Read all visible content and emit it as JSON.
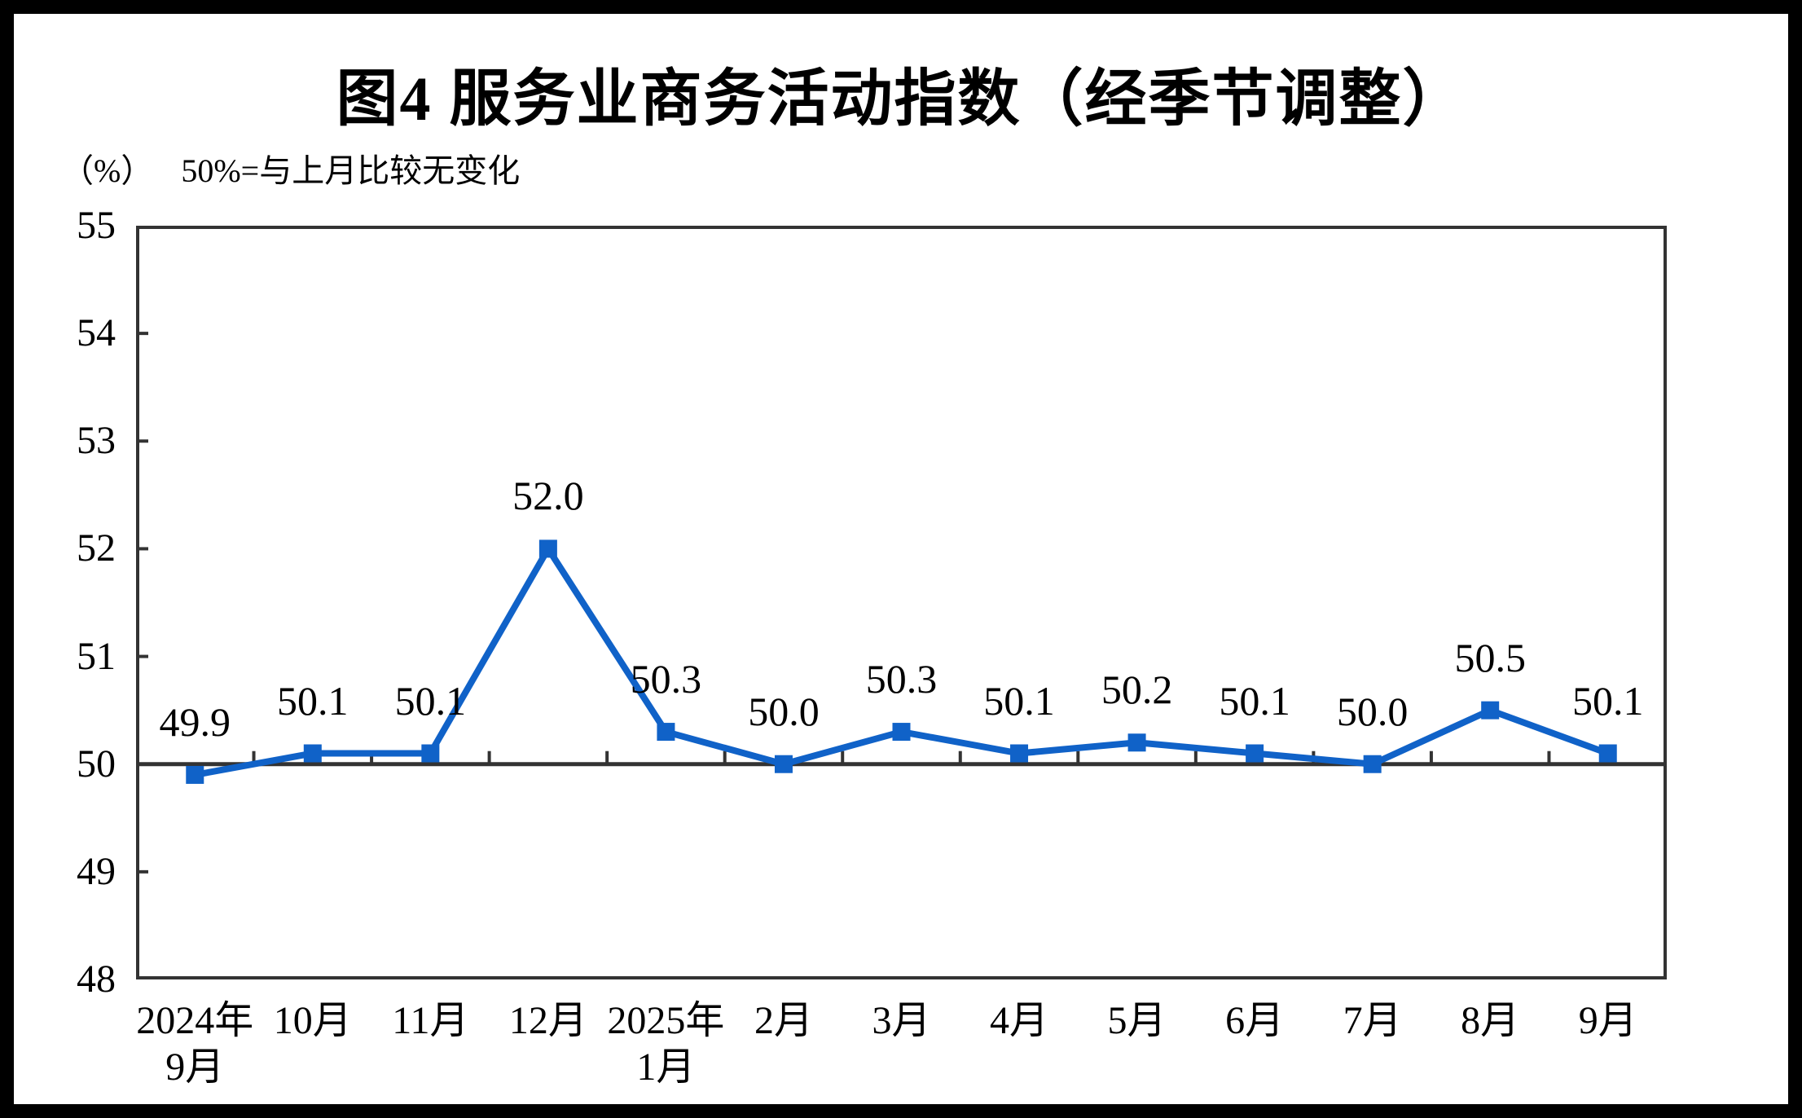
{
  "title": "图4 服务业商务活动指数（经季节调整）",
  "y_axis_unit": "（%）",
  "subtitle_note": "50%=与上月比较无变化",
  "colors": {
    "line": "#1062C8",
    "axis": "#333333",
    "frame": "#000000",
    "text": "#000000",
    "background": "#ffffff"
  },
  "chart_data": {
    "type": "line",
    "title": "图4 服务业商务活动指数（经季节调整）",
    "unit_label": "（%）",
    "note": "50%=与上月比较无变化",
    "categories": [
      {
        "line1": "2024年",
        "line2": "9月"
      },
      {
        "line1": "10月",
        "line2": ""
      },
      {
        "line1": "11月",
        "line2": ""
      },
      {
        "line1": "12月",
        "line2": ""
      },
      {
        "line1": "2025年",
        "line2": "1月"
      },
      {
        "line1": "2月",
        "line2": ""
      },
      {
        "line1": "3月",
        "line2": ""
      },
      {
        "line1": "4月",
        "line2": ""
      },
      {
        "line1": "5月",
        "line2": ""
      },
      {
        "line1": "6月",
        "line2": ""
      },
      {
        "line1": "7月",
        "line2": ""
      },
      {
        "line1": "8月",
        "line2": ""
      },
      {
        "line1": "9月",
        "line2": ""
      }
    ],
    "values": [
      49.9,
      50.1,
      50.1,
      52.0,
      50.3,
      50.0,
      50.3,
      50.1,
      50.2,
      50.1,
      50.0,
      50.5,
      50.1
    ],
    "point_labels": [
      "49.9",
      "50.1",
      "50.1",
      "52.0",
      "50.3",
      "50.0",
      "50.3",
      "50.1",
      "50.2",
      "50.1",
      "50.0",
      "50.5",
      "50.1"
    ],
    "ylim": [
      48,
      55
    ],
    "y_ticks": [
      55,
      54,
      53,
      52,
      51,
      50,
      49,
      48
    ],
    "baseline_value": 50,
    "grid": "off",
    "legend": "none",
    "marker": "square",
    "series_name": "服务业商务活动指数"
  }
}
